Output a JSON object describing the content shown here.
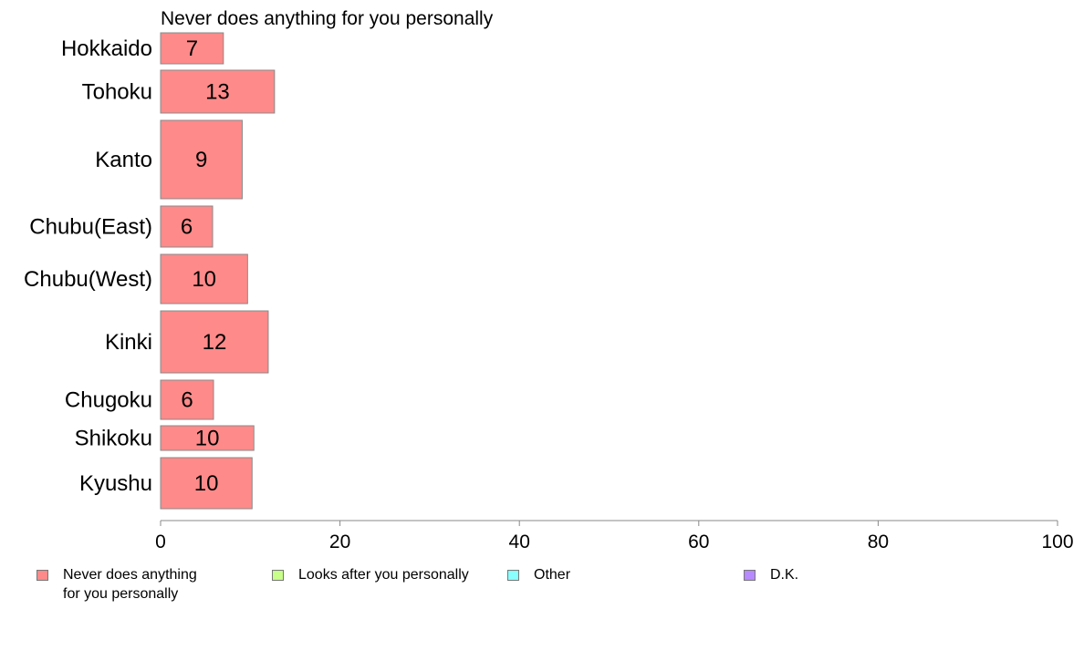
{
  "chart_data": {
    "type": "bar",
    "orientation": "horizontal",
    "title": "Never does anything for you personally",
    "categories": [
      "Hokkaido",
      "Tohoku",
      "Kanto",
      "Chubu(East)",
      "Chubu(West)",
      "Kinki",
      "Chugoku",
      "Shikoku",
      "Kyushu"
    ],
    "series": [
      {
        "name": "Never does anything\nfor you personally",
        "values": [
          7,
          12.7,
          9.1,
          5.8,
          9.7,
          12,
          5.9,
          10.4,
          10.2
        ],
        "labels": [
          "7",
          "13",
          "9",
          "6",
          "10",
          "12",
          "6",
          "10",
          "10"
        ],
        "color": "#ff8a8a"
      },
      {
        "name": "Looks after you personally",
        "color": "#c8ff8a"
      },
      {
        "name": "Other",
        "color": "#8affff"
      },
      {
        "name": "D.K.",
        "color": "#b88aff"
      }
    ],
    "xlim": [
      0,
      100
    ],
    "xticks": [
      0,
      20,
      40,
      60,
      80,
      100
    ],
    "grid": false,
    "legend_position": "bottom"
  }
}
